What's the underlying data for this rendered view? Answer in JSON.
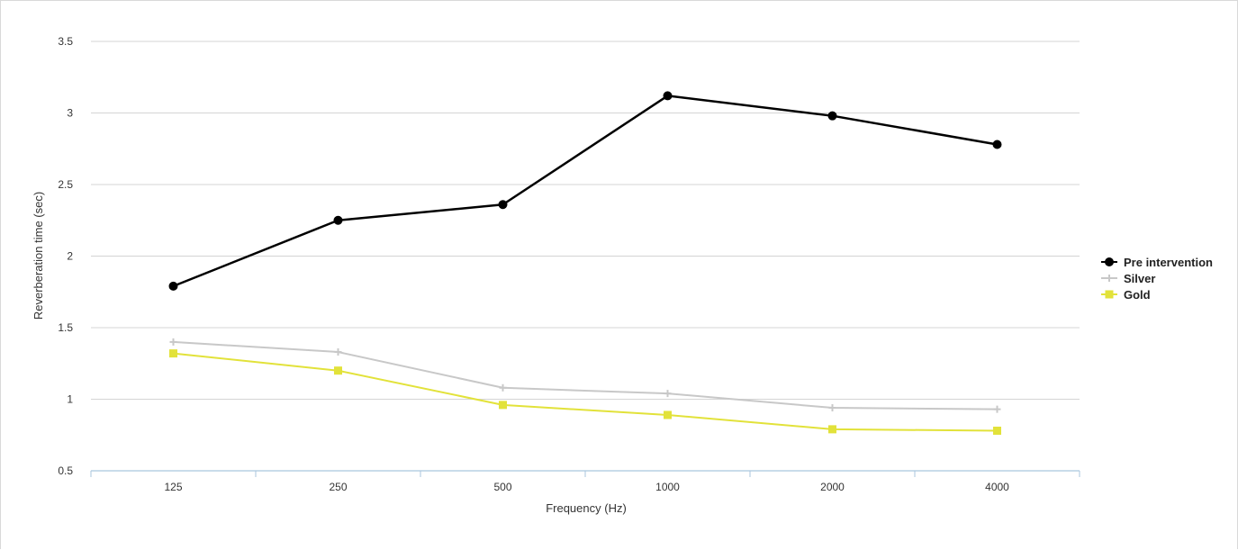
{
  "chart_data": {
    "type": "line",
    "title": "",
    "xlabel": "Frequency (Hz)",
    "ylabel": "Reverberation time (sec)",
    "categories": [
      "125",
      "250",
      "500",
      "1000",
      "2000",
      "4000"
    ],
    "ylim": [
      0.5,
      3.5
    ],
    "yticks": [
      "0.5",
      "1",
      "1.5",
      "2",
      "2.5",
      "3",
      "3.5"
    ],
    "grid": true,
    "legend_position": "right",
    "series": [
      {
        "name": "Pre intervention",
        "color": "#000000",
        "marker": "circle",
        "values": [
          1.79,
          2.25,
          2.36,
          3.12,
          2.98,
          2.78
        ]
      },
      {
        "name": "Silver",
        "color": "#c8c8c8",
        "marker": "plus",
        "values": [
          1.4,
          1.33,
          1.08,
          1.04,
          0.94,
          0.93
        ]
      },
      {
        "name": "Gold",
        "color": "#e2e23a",
        "marker": "square",
        "values": [
          1.32,
          1.2,
          0.96,
          0.89,
          0.79,
          0.78
        ]
      }
    ]
  }
}
